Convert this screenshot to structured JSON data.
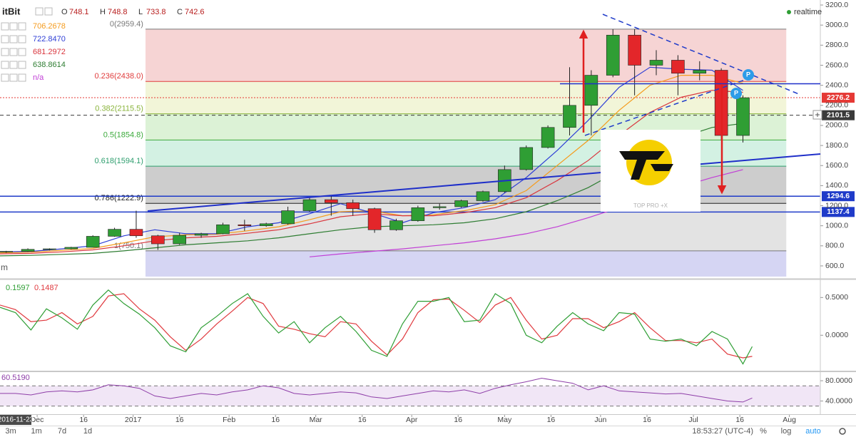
{
  "chart_data": {
    "type": "candlestick",
    "symbol": "itBit",
    "readout": [
      {
        "key": "O",
        "value": 748.1
      },
      {
        "key": "H",
        "value": 748.8
      },
      {
        "key": "L",
        "value": 733.8
      },
      {
        "key": "C",
        "value": 742.6
      }
    ],
    "status": "realtime",
    "xlim": [
      "2016-11-19",
      "2017-08-11"
    ],
    "xticks": [
      {
        "value": "2016-12-01",
        "label": "Dec"
      },
      {
        "value": "2016-12-16",
        "label": "16"
      },
      {
        "value": "2017-01-01",
        "label": "2017"
      },
      {
        "value": "2017-01-16",
        "label": "16"
      },
      {
        "value": "2017-02-01",
        "label": "Feb"
      },
      {
        "value": "2017-02-16",
        "label": "16"
      },
      {
        "value": "2017-03-01",
        "label": "Mar"
      },
      {
        "value": "2017-03-16",
        "label": "16"
      },
      {
        "value": "2017-04-01",
        "label": "Apr"
      },
      {
        "value": "2017-04-16",
        "label": "16"
      },
      {
        "value": "2017-05-01",
        "label": "May"
      },
      {
        "value": "2017-05-16",
        "label": "16"
      },
      {
        "value": "2017-06-01",
        "label": "Jun"
      },
      {
        "value": "2017-06-16",
        "label": "16"
      },
      {
        "value": "2017-07-01",
        "label": "Jul"
      },
      {
        "value": "2017-07-16",
        "label": "16"
      },
      {
        "value": "2017-08-01",
        "label": "Aug"
      }
    ],
    "cursor_date": "2016-11-23",
    "ylim": [
      472,
      3250
    ],
    "yticks": [
      {
        "value": 600,
        "label": "600.0"
      },
      {
        "value": 800,
        "label": "800.0"
      },
      {
        "value": 1000,
        "label": "1000.0"
      },
      {
        "value": 1200,
        "label": "1200.0"
      },
      {
        "value": 1400,
        "label": "1400.0"
      },
      {
        "value": 1600,
        "label": "1600.0"
      },
      {
        "value": 1800,
        "label": "1800.0"
      },
      {
        "value": 2000,
        "label": "2000.0"
      },
      {
        "value": 2200,
        "label": "2200.0"
      },
      {
        "value": 2400,
        "label": "2400.0"
      },
      {
        "value": 2600,
        "label": "2600.0"
      },
      {
        "value": 2800,
        "label": "2800.0"
      },
      {
        "value": 3000,
        "label": "3000.0"
      },
      {
        "value": 3200,
        "label": "3200.0"
      }
    ],
    "x": [
      "2016-11-21",
      "2016-11-28",
      "2016-12-05",
      "2016-12-12",
      "2016-12-19",
      "2016-12-26",
      "2017-01-02",
      "2017-01-09",
      "2017-01-16",
      "2017-01-23",
      "2017-01-30",
      "2017-02-06",
      "2017-02-13",
      "2017-02-20",
      "2017-02-27",
      "2017-03-06",
      "2017-03-13",
      "2017-03-20",
      "2017-03-27",
      "2017-04-03",
      "2017-04-10",
      "2017-04-17",
      "2017-04-24",
      "2017-05-01",
      "2017-05-08",
      "2017-05-15",
      "2017-05-22",
      "2017-05-29",
      "2017-06-05",
      "2017-06-12",
      "2017-06-19",
      "2017-06-26",
      "2017-07-03",
      "2017-07-10",
      "2017-07-17"
    ],
    "open": [
      740,
      745,
      765,
      770,
      785,
      895,
      965,
      900,
      820,
      905,
      920,
      1010,
      1000,
      1020,
      1150,
      1260,
      1230,
      1170,
      960,
      1050,
      1180,
      1190,
      1250,
      1340,
      1560,
      1780,
      1980,
      2200,
      2500,
      2900,
      2600,
      2650,
      2520,
      2550,
      1900
    ],
    "high": [
      750,
      775,
      775,
      790,
      905,
      980,
      1150,
      910,
      930,
      930,
      1030,
      1060,
      1030,
      1190,
      1290,
      1300,
      1260,
      1180,
      1070,
      1200,
      1220,
      1260,
      1350,
      1600,
      1800,
      2000,
      2580,
      2550,
      2959,
      2959,
      2750,
      2700,
      2640,
      2570,
      2300
    ],
    "low": [
      730,
      740,
      755,
      765,
      785,
      890,
      880,
      760,
      810,
      880,
      915,
      950,
      990,
      1010,
      1140,
      1100,
      1100,
      930,
      950,
      1040,
      1160,
      1180,
      1240,
      1330,
      1550,
      1770,
      1900,
      1900,
      2480,
      2300,
      2500,
      2300,
      2450,
      1850,
      1830
    ],
    "close": [
      745,
      765,
      770,
      785,
      895,
      965,
      900,
      820,
      905,
      920,
      1010,
      1000,
      1020,
      1150,
      1260,
      1230,
      1170,
      960,
      1050,
      1180,
      1190,
      1250,
      1340,
      1560,
      1780,
      1980,
      2200,
      2500,
      2900,
      2600,
      2650,
      2520,
      2550,
      1900,
      2276.2
    ],
    "up_color": "#2f9e34",
    "down_color": "#e3262a",
    "moving_averages": {
      "x": [
        "2016-11-19",
        "2016-11-29",
        "2016-12-09",
        "2016-12-19",
        "2016-12-29",
        "2017-01-08",
        "2017-01-18",
        "2017-01-28",
        "2017-02-07",
        "2017-02-17",
        "2017-02-27",
        "2017-03-09",
        "2017-03-19",
        "2017-03-29",
        "2017-04-08",
        "2017-04-18",
        "2017-04-28",
        "2017-05-08",
        "2017-05-18",
        "2017-05-28",
        "2017-06-07",
        "2017-06-17",
        "2017-06-27",
        "2017-07-07",
        "2017-07-17"
      ],
      "series": [
        {
          "color": "#f59b1c",
          "readout": "706.2678",
          "values": [
            730,
            738,
            755,
            775,
            830,
            890,
            910,
            915,
            950,
            990,
            1060,
            1140,
            1150,
            1100,
            1110,
            1150,
            1210,
            1350,
            1600,
            1850,
            2150,
            2400,
            2500,
            2500,
            2420
          ]
        },
        {
          "color": "#2f3fd6",
          "readout": "722.8470",
          "values": [
            740,
            745,
            770,
            800,
            900,
            960,
            920,
            920,
            990,
            1030,
            1120,
            1220,
            1130,
            1030,
            1130,
            1180,
            1260,
            1480,
            1750,
            2050,
            2380,
            2580,
            2560,
            2550,
            2350
          ]
        },
        {
          "color": "#d9363e",
          "readout": "681.2972",
          "values": [
            720,
            725,
            740,
            760,
            800,
            850,
            880,
            895,
            925,
            960,
            1020,
            1090,
            1120,
            1100,
            1100,
            1130,
            1180,
            1280,
            1450,
            1650,
            1900,
            2130,
            2280,
            2350,
            2330
          ]
        },
        {
          "color": "#2e7d32",
          "readout": "638.8614",
          "values": [
            700,
            705,
            715,
            725,
            750,
            780,
            810,
            830,
            850,
            880,
            920,
            960,
            990,
            1000,
            1010,
            1030,
            1070,
            1140,
            1250,
            1380,
            1550,
            1720,
            1880,
            1980,
            2020
          ]
        },
        {
          "color": "#c13fd6",
          "readout": "n/a",
          "values": [
            null,
            null,
            null,
            null,
            null,
            null,
            null,
            null,
            null,
            null,
            690,
            720,
            745,
            770,
            800,
            830,
            870,
            920,
            990,
            1080,
            1180,
            1290,
            1390,
            1480,
            1560
          ]
        }
      ]
    },
    "fibonacci": {
      "start": "2017-01-05",
      "end": "2017-07-31",
      "levels": [
        {
          "label": "0(2959.4)",
          "value": 2959.4,
          "color": "#787878",
          "fill": "#f6d4d4"
        },
        {
          "label": "0.236(2438.0)",
          "value": 2438.0,
          "color": "#e03c3c",
          "fill": "#f2f5d8"
        },
        {
          "label": "0.382(2115.5)",
          "value": 2115.5,
          "color": "#8ab43c",
          "fill": "#dcf2d6"
        },
        {
          "label": "0.5(1854.8)",
          "value": 1854.8,
          "color": "#3caa3c",
          "fill": "#d3f1e3"
        },
        {
          "label": "0.618(1594.1)",
          "value": 1594.1,
          "color": "#2e9e6e",
          "fill": "#cdcdcd"
        },
        {
          "label": "0.786(1222.9)",
          "value": 1222.9,
          "color": "#222222",
          "fill": "#e3e3e3"
        },
        {
          "label": "1(750.1)",
          "value": 750.1,
          "color": "#787878",
          "fill": "#d5d5f3"
        }
      ]
    },
    "price_lines": [
      {
        "value": 2276.2,
        "color": "#e53935",
        "style": "dotted"
      },
      {
        "value": 2101.5,
        "color": "#3a3a3a",
        "style": "dashed"
      },
      {
        "value": 1294.6,
        "color": "#1f3bc9",
        "style": "solid"
      },
      {
        "value": 1137.4,
        "color": "#1f3bc9",
        "style": "solid"
      }
    ],
    "overlay_label": "m",
    "p_badges": [
      "P",
      "P"
    ],
    "logo_text": "TOP PRO +X",
    "indicator_x": [
      "2016-11-19",
      "2016-11-24",
      "2016-11-29",
      "2016-12-04",
      "2016-12-09",
      "2016-12-14",
      "2016-12-19",
      "2016-12-24",
      "2016-12-29",
      "2017-01-03",
      "2017-01-08",
      "2017-01-13",
      "2017-01-18",
      "2017-01-23",
      "2017-01-28",
      "2017-02-02",
      "2017-02-07",
      "2017-02-12",
      "2017-02-17",
      "2017-02-22",
      "2017-02-27",
      "2017-03-04",
      "2017-03-09",
      "2017-03-14",
      "2017-03-19",
      "2017-03-24",
      "2017-03-29",
      "2017-04-03",
      "2017-04-08",
      "2017-04-13",
      "2017-04-18",
      "2017-04-23",
      "2017-04-28",
      "2017-05-03",
      "2017-05-08",
      "2017-05-13",
      "2017-05-18",
      "2017-05-23",
      "2017-05-28",
      "2017-06-02",
      "2017-06-07",
      "2017-06-12",
      "2017-06-17",
      "2017-06-22",
      "2017-06-27",
      "2017-07-02",
      "2017-07-07",
      "2017-07-12",
      "2017-07-17",
      "2017-07-20"
    ],
    "oscillator": {
      "ylim": [
        -0.47,
        0.73
      ],
      "yticks": [
        {
          "value": 0.5,
          "label": "0.5000"
        },
        {
          "value": 0,
          "label": "0.0000"
        }
      ],
      "series": [
        {
          "color": "#2e9e34",
          "readout": "0.1597",
          "values": [
            0.37,
            0.3,
            0.07,
            0.35,
            0.23,
            0.08,
            0.4,
            0.6,
            0.42,
            0.28,
            0.1,
            -0.14,
            -0.22,
            0.1,
            0.25,
            0.42,
            0.55,
            0.25,
            0.03,
            0.18,
            -0.1,
            0.1,
            0.25,
            0.05,
            -0.2,
            -0.28,
            0.15,
            0.45,
            0.45,
            0.5,
            0.18,
            0.2,
            0.55,
            0.42,
            0.0,
            -0.1,
            0.12,
            0.3,
            0.15,
            0.06,
            0.3,
            0.28,
            -0.05,
            -0.08,
            -0.05,
            -0.14,
            0.05,
            -0.05,
            -0.38,
            -0.15
          ]
        },
        {
          "color": "#e0393e",
          "readout": "0.1487",
          "values": [
            0.4,
            0.34,
            0.18,
            0.2,
            0.3,
            0.15,
            0.25,
            0.52,
            0.55,
            0.35,
            0.2,
            -0.02,
            -0.2,
            -0.05,
            0.15,
            0.32,
            0.5,
            0.42,
            0.12,
            0.08,
            0.02,
            -0.02,
            0.18,
            0.15,
            -0.08,
            -0.26,
            -0.05,
            0.3,
            0.47,
            0.48,
            0.33,
            0.17,
            0.4,
            0.5,
            0.2,
            -0.05,
            0.0,
            0.22,
            0.22,
            0.1,
            0.18,
            0.3,
            0.1,
            -0.07,
            -0.07,
            -0.1,
            -0.05,
            -0.25,
            -0.3,
            -0.28
          ]
        }
      ]
    },
    "rsi": {
      "ylim": [
        14,
        97
      ],
      "yticks": [
        {
          "value": 80,
          "label": "80.0000"
        },
        {
          "value": 40,
          "label": "40.0000"
        }
      ],
      "bands": [
        70,
        30
      ],
      "color": "#8e3ea8",
      "readout": "60.5190",
      "values": [
        55,
        55,
        52,
        58,
        60,
        58,
        62,
        72,
        70,
        65,
        50,
        45,
        50,
        55,
        52,
        58,
        62,
        70,
        66,
        55,
        52,
        55,
        58,
        56,
        48,
        45,
        50,
        55,
        60,
        58,
        62,
        55,
        65,
        72,
        78,
        85,
        80,
        75,
        62,
        70,
        60,
        58,
        56,
        54,
        55,
        50,
        45,
        40,
        38,
        46
      ]
    },
    "toolbar": {
      "ranges": [
        "3m",
        "1m",
        "7d",
        "1d"
      ],
      "clock": "18:53:27 (UTC-4)",
      "buttons": [
        "%",
        "log",
        "auto"
      ]
    }
  }
}
